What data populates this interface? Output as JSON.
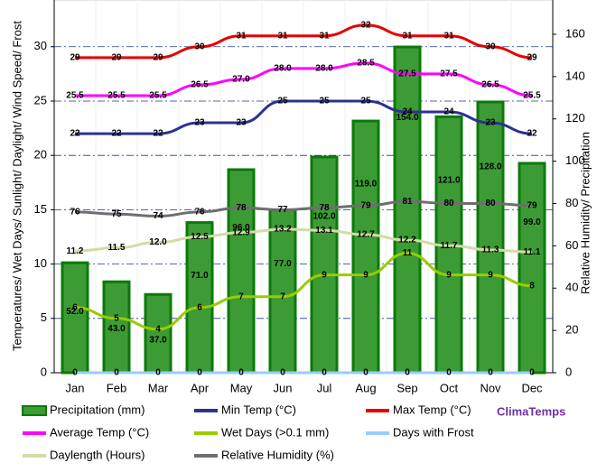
{
  "chart_data": {
    "type": "bar-line",
    "y_label": "Temperatures/ Wet Days/ Sunlight/ Daylight/ Wind Speed/ Frost",
    "y2_label": "Relative Humidity/ Precipitation",
    "brand": "ClimaTemps",
    "categories": [
      "Jan",
      "Feb",
      "Mar",
      "Apr",
      "May",
      "Jun",
      "Jul",
      "Aug",
      "Sep",
      "Oct",
      "Nov",
      "Dec"
    ],
    "ylim": [
      0,
      34.3
    ],
    "yticks": [
      0,
      5,
      10,
      15,
      20,
      25,
      30
    ],
    "y2lim": [
      0,
      176.2
    ],
    "y2ticks": [
      0,
      20,
      40,
      60,
      80,
      100,
      120,
      140,
      160
    ],
    "grid": true,
    "series": [
      {
        "name": "Precipitation (mm)",
        "type": "bar",
        "axis": "y2",
        "color": "#3d9b35",
        "values": [
          52,
          43,
          37,
          71,
          96,
          77,
          102,
          119,
          154,
          121,
          128,
          99
        ],
        "value_labels": [
          "52.0",
          "43.0",
          "37.0",
          "71.0",
          "96.0",
          "77.0",
          "102.0",
          "119.0",
          "154.0",
          "121.0",
          "128.0",
          "99.0"
        ]
      },
      {
        "name": "Min Temp (°C)",
        "type": "line",
        "axis": "y",
        "color": "#2e3192",
        "values": [
          22,
          22,
          22,
          23,
          23,
          25,
          25,
          25,
          24,
          24,
          23,
          22
        ]
      },
      {
        "name": "Max Temp (°C)",
        "type": "line",
        "axis": "y",
        "color": "#e60000",
        "values": [
          29,
          29,
          29,
          30,
          31,
          31,
          31,
          32,
          31,
          31,
          30,
          29
        ]
      },
      {
        "name": "Average Temp (°C)",
        "type": "line",
        "axis": "y",
        "color": "#ff00ff",
        "values": [
          25.5,
          25.5,
          25.5,
          26.5,
          27,
          28,
          28,
          28.5,
          27.5,
          27.5,
          26.5,
          25.5
        ],
        "value_labels": [
          "25.5",
          "25.5",
          "25.5",
          "26.5",
          "27.0",
          "28.0",
          "28.0",
          "28.5",
          "27.5",
          "27.5",
          "26.5",
          "25.5"
        ]
      },
      {
        "name": "Wet Days (>0.1 mm)",
        "type": "line",
        "axis": "y",
        "color": "#99cc00",
        "values": [
          6,
          5,
          4,
          6,
          7,
          7,
          9,
          9,
          11,
          9,
          9,
          8
        ]
      },
      {
        "name": "Days with Frost",
        "type": "line",
        "axis": "y",
        "color": "#99ccff",
        "values": [
          0,
          0,
          0,
          0,
          0,
          0,
          0,
          0,
          0,
          0,
          0,
          0
        ]
      },
      {
        "name": "Daylength (Hours)",
        "type": "line",
        "axis": "y",
        "color": "#d4dba6",
        "values": [
          11.2,
          11.5,
          12,
          12.5,
          12.9,
          13.2,
          13.1,
          12.7,
          12.2,
          11.7,
          11.3,
          11.1
        ],
        "value_labels": [
          "11.2",
          "11.5",
          "12.0",
          "12.5",
          "12.9",
          "13.2",
          "13.1",
          "12.7",
          "12.2",
          "11.7",
          "11.3",
          "11.1"
        ]
      },
      {
        "name": "Relative Humidity (%)",
        "type": "line",
        "axis": "y2",
        "color": "#6e6e6e",
        "values": [
          76,
          75,
          74,
          76,
          78,
          77,
          78,
          79,
          81,
          80,
          80,
          79
        ]
      }
    ]
  }
}
